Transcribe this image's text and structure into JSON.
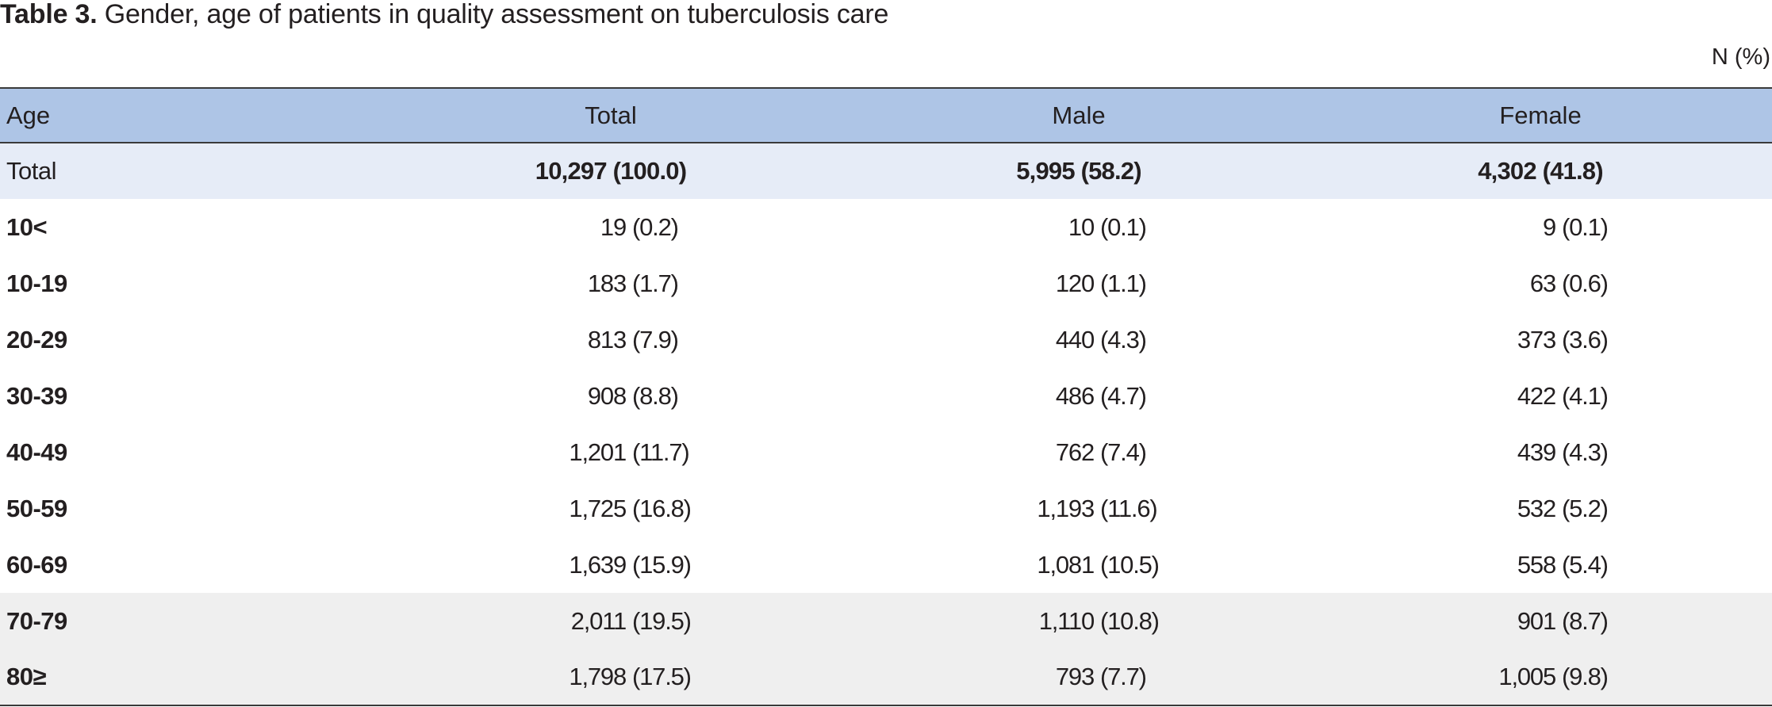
{
  "caption": {
    "label": "Table 3.",
    "text": " Gender, age of patients in quality assessment on tuberculosis care"
  },
  "unit": "N (%)",
  "headers": {
    "age": "Age",
    "total": "Total",
    "male": "Male",
    "female": "Female"
  },
  "total_row": {
    "age": "Total",
    "total": "10,297 (100.0)",
    "male": "5,995 (58.2)",
    "female": "4,302 (41.8)"
  },
  "rows": [
    {
      "age": "10<",
      "total_n": "19",
      "total_p": "(0.2)",
      "male_n": "10",
      "male_p": "(0.1)",
      "female_n": "9",
      "female_p": "(0.1)"
    },
    {
      "age": "10-19",
      "total_n": "183",
      "total_p": "(1.7)",
      "male_n": "120",
      "male_p": "(1.1)",
      "female_n": "63",
      "female_p": "(0.6)"
    },
    {
      "age": "20-29",
      "total_n": "813",
      "total_p": "(7.9)",
      "male_n": "440",
      "male_p": "(4.3)",
      "female_n": "373",
      "female_p": "(3.6)"
    },
    {
      "age": "30-39",
      "total_n": "908",
      "total_p": "(8.8)",
      "male_n": "486",
      "male_p": "(4.7)",
      "female_n": "422",
      "female_p": "(4.1)"
    },
    {
      "age": "40-49",
      "total_n": "1,201",
      "total_p": "(11.7)",
      "male_n": "762",
      "male_p": "(7.4)",
      "female_n": "439",
      "female_p": "(4.3)"
    },
    {
      "age": "50-59",
      "total_n": "1,725",
      "total_p": "(16.8)",
      "male_n": "1,193",
      "male_p": "(11.6)",
      "female_n": "532",
      "female_p": "(5.2)"
    },
    {
      "age": "60-69",
      "total_n": "1,639",
      "total_p": "(15.9)",
      "male_n": "1,081",
      "male_p": "(10.5)",
      "female_n": "558",
      "female_p": "(5.4)"
    },
    {
      "age": "70-79",
      "total_n": "2,011",
      "total_p": "(19.5)",
      "male_n": "1,110",
      "male_p": "(10.8)",
      "female_n": "901",
      "female_p": "(8.7)"
    },
    {
      "age": "80≥",
      "total_n": "1,798",
      "total_p": "(17.5)",
      "male_n": "793",
      "male_p": "(7.7)",
      "female_n": "1,005",
      "female_p": "(9.8)"
    }
  ],
  "colors": {
    "header_bg": "#aec5e6",
    "total_row_bg": "#e6ecf7",
    "shaded_row_bg": "#efefef",
    "rule": "#3a3a3a"
  }
}
